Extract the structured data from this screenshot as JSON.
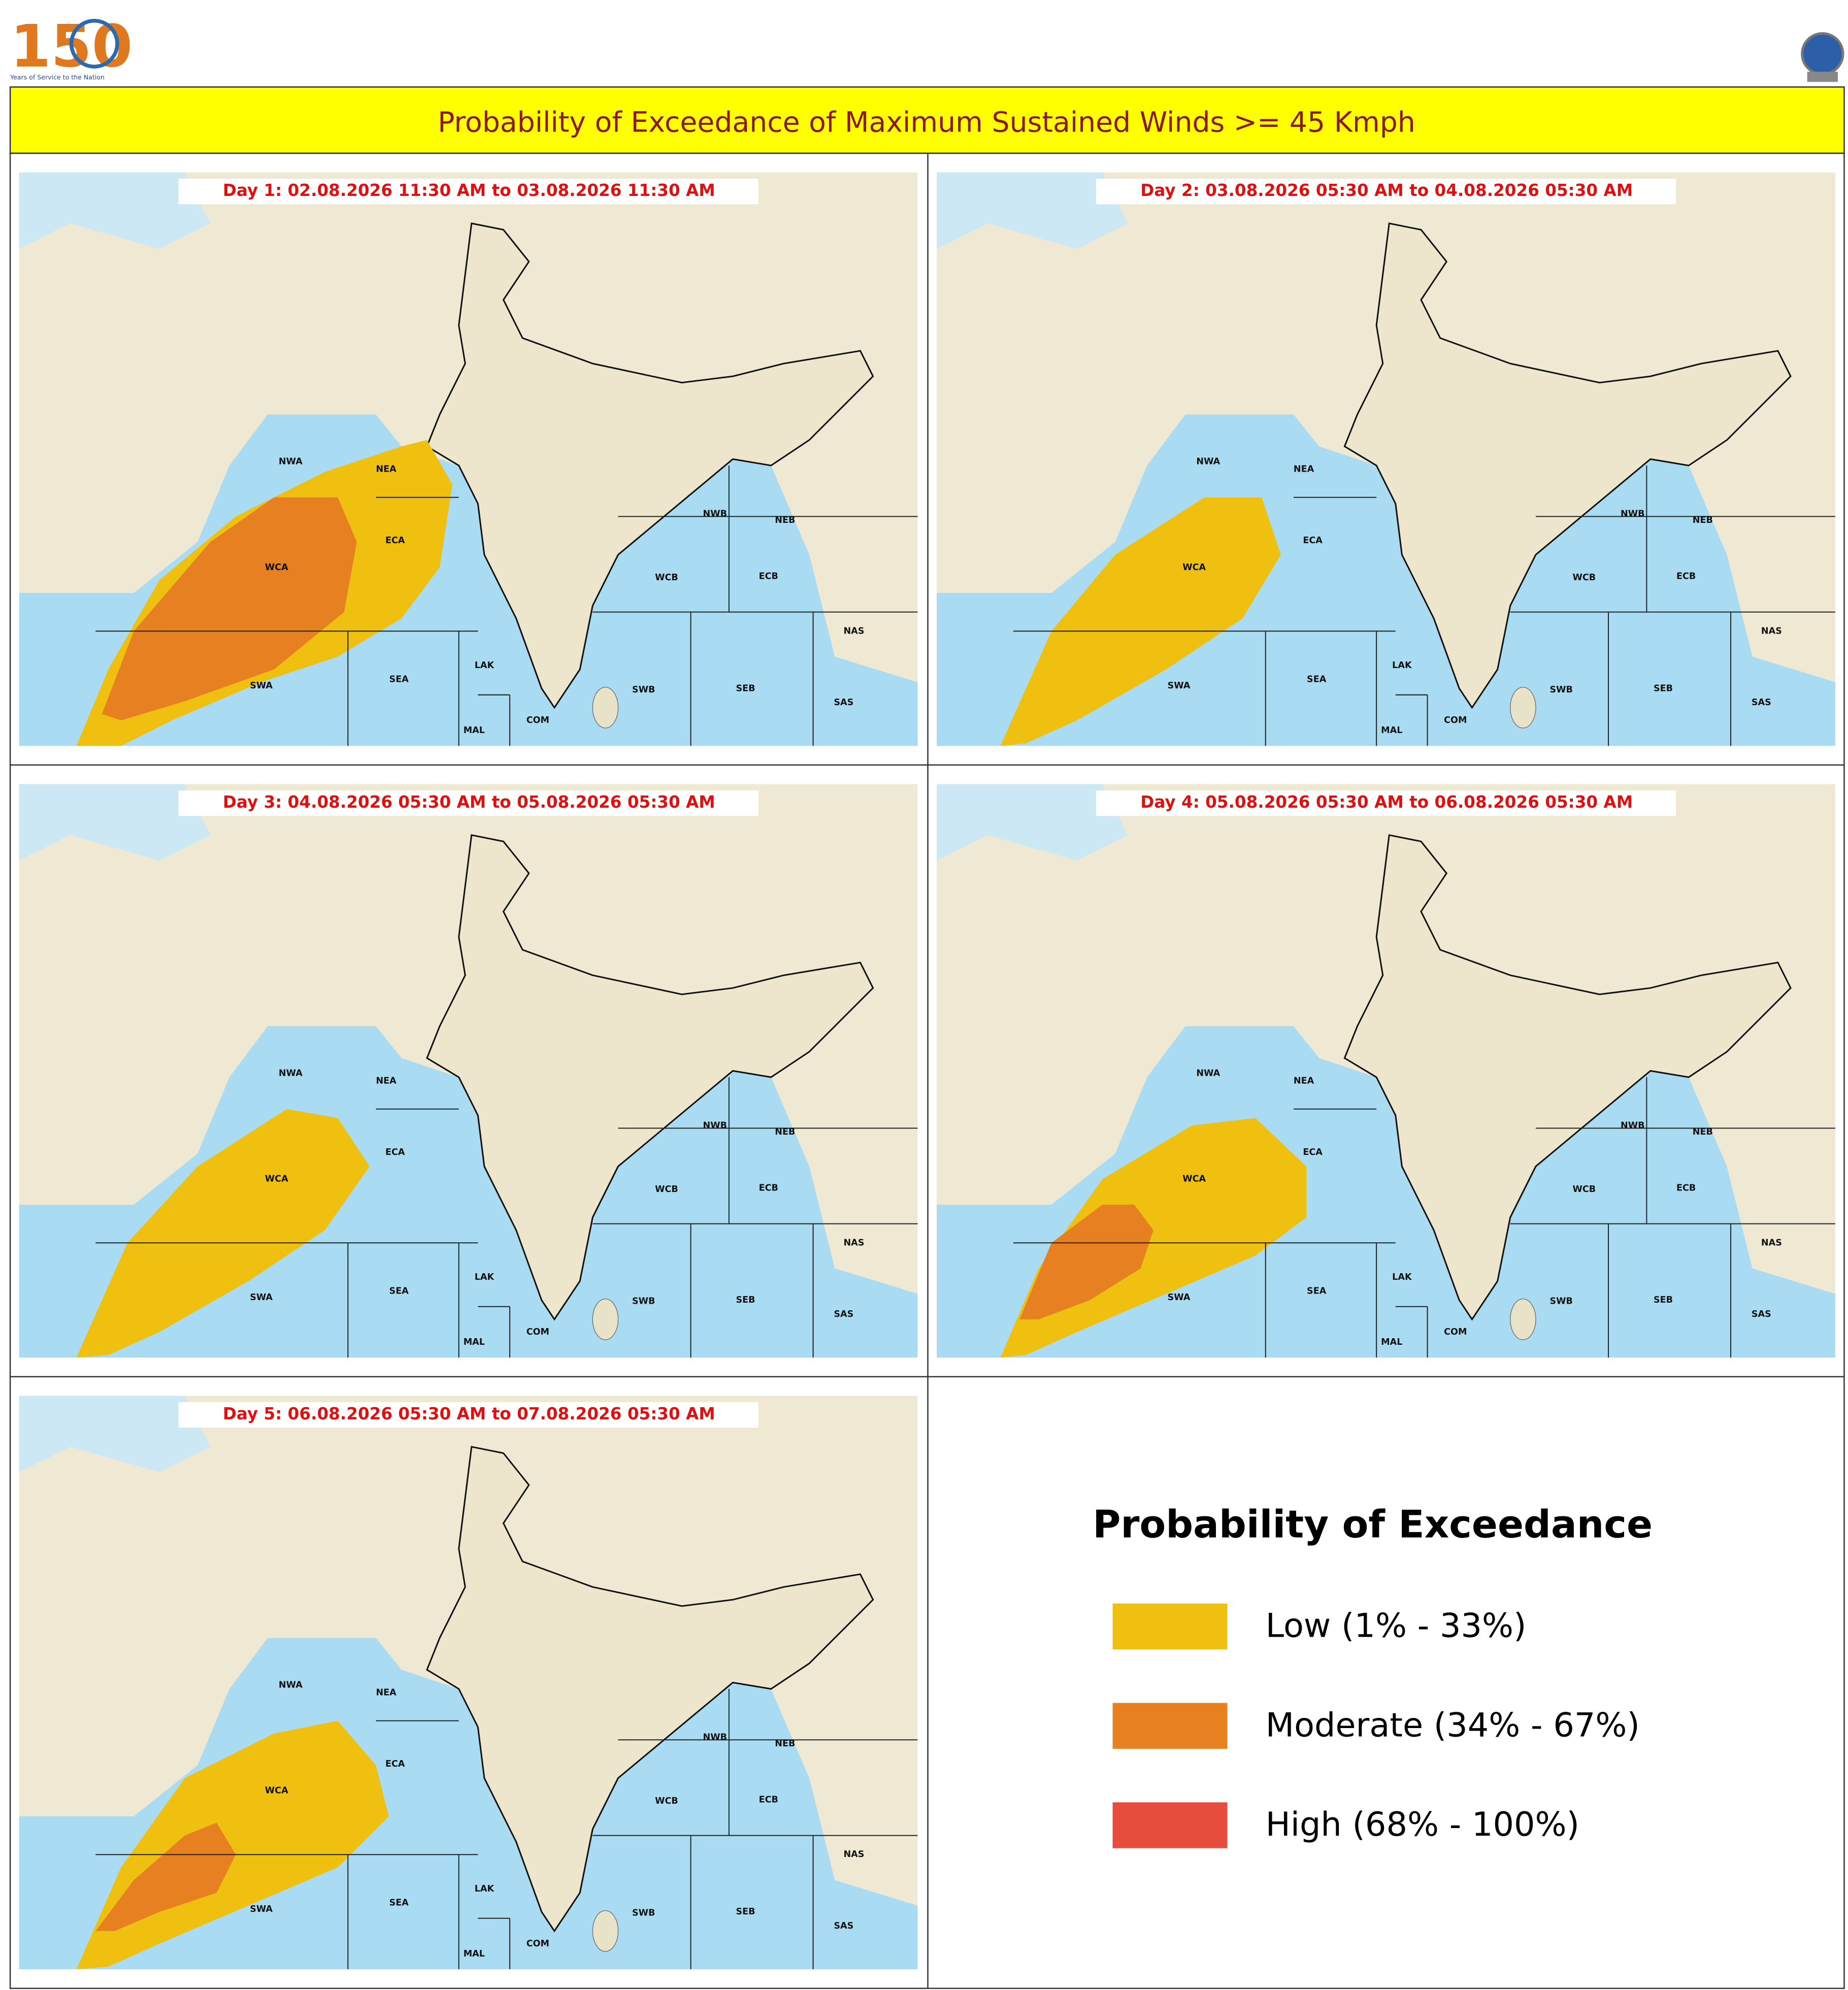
{
  "logo": {
    "text": "150",
    "tagline": "Years of Service to the Nation"
  },
  "title": "Probability of Exceedance of Maximum Sustained Winds >= 45 Kmph",
  "panels": [
    {
      "label": "Day 1: 02.08.2026 11:30 AM to 03.08.2026 11:30 AM"
    },
    {
      "label": "Day 2: 03.08.2026 05:30 AM to 04.08.2026 05:30 AM"
    },
    {
      "label": "Day 3: 04.08.2026 05:30 AM to 05.08.2026 05:30 AM"
    },
    {
      "label": "Day 4: 05.08.2026 05:30 AM to 06.08.2026 05:30 AM"
    },
    {
      "label": "Day 5: 06.08.2026 05:30 AM to 07.08.2026 05:30 AM"
    }
  ],
  "region_labels": [
    "NWA",
    "NEA",
    "ECA",
    "WCA",
    "SWA",
    "SEA",
    "LAK",
    "MAL",
    "COM",
    "SWB",
    "SEB",
    "WCB",
    "ECB",
    "NWB",
    "NEB",
    "NAS",
    "SAS"
  ],
  "legend": {
    "title": "Probability of Exceedance",
    "items": [
      {
        "label": "Low (1% - 33%)",
        "color": "#f0c010"
      },
      {
        "label": "Moderate (34% - 67%)",
        "color": "#e68020"
      },
      {
        "label": "High (68% - 100%)",
        "color": "#e84c3d"
      }
    ]
  }
}
